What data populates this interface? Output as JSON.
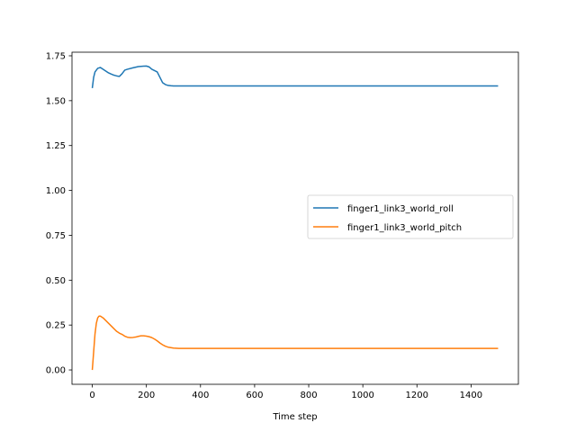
{
  "chart_data": {
    "type": "line",
    "title": "",
    "xlabel": "Time step",
    "ylabel": "",
    "xlim": [
      -75,
      1575
    ],
    "ylim": [
      -0.08,
      1.77
    ],
    "xticks": [
      0,
      200,
      400,
      600,
      800,
      1000,
      1200,
      1400
    ],
    "xtick_labels": [
      "0",
      "200",
      "400",
      "600",
      "800",
      "1000",
      "1200",
      "1400"
    ],
    "yticks": [
      0.0,
      0.25,
      0.5,
      0.75,
      1.0,
      1.25,
      1.5,
      1.75
    ],
    "ytick_labels": [
      "0.00",
      "0.25",
      "0.50",
      "0.75",
      "1.00",
      "1.25",
      "1.50",
      "1.75"
    ],
    "grid": false,
    "legend_position": "center-right",
    "series": [
      {
        "name": "finger1_link3_world_roll",
        "color": "#1f77b4",
        "x": [
          0,
          5,
          10,
          20,
          30,
          40,
          50,
          60,
          70,
          80,
          90,
          100,
          110,
          120,
          130,
          150,
          170,
          190,
          200,
          210,
          220,
          240,
          250,
          260,
          270,
          280,
          290,
          300,
          320,
          350,
          400,
          600,
          800,
          1000,
          1200,
          1400,
          1500
        ],
        "y": [
          1.57,
          1.63,
          1.66,
          1.68,
          1.685,
          1.675,
          1.665,
          1.655,
          1.648,
          1.642,
          1.638,
          1.635,
          1.65,
          1.67,
          1.675,
          1.683,
          1.69,
          1.692,
          1.693,
          1.688,
          1.675,
          1.66,
          1.63,
          1.6,
          1.59,
          1.585,
          1.583,
          1.582,
          1.582,
          1.582,
          1.582,
          1.582,
          1.582,
          1.582,
          1.582,
          1.582,
          1.582
        ]
      },
      {
        "name": "finger1_link3_world_pitch",
        "color": "#ff7f0e",
        "x": [
          0,
          5,
          10,
          15,
          20,
          25,
          30,
          40,
          50,
          60,
          70,
          80,
          90,
          100,
          110,
          120,
          130,
          140,
          150,
          160,
          170,
          180,
          190,
          200,
          210,
          220,
          230,
          240,
          250,
          260,
          270,
          280,
          300,
          320,
          350,
          400,
          600,
          800,
          1000,
          1200,
          1400,
          1500
        ],
        "y": [
          0.0,
          0.1,
          0.2,
          0.26,
          0.29,
          0.3,
          0.3,
          0.29,
          0.275,
          0.26,
          0.245,
          0.23,
          0.215,
          0.205,
          0.198,
          0.188,
          0.182,
          0.18,
          0.181,
          0.183,
          0.187,
          0.19,
          0.19,
          0.188,
          0.185,
          0.18,
          0.172,
          0.162,
          0.15,
          0.14,
          0.132,
          0.127,
          0.122,
          0.12,
          0.12,
          0.12,
          0.12,
          0.12,
          0.12,
          0.12,
          0.12,
          0.12
        ]
      }
    ]
  }
}
